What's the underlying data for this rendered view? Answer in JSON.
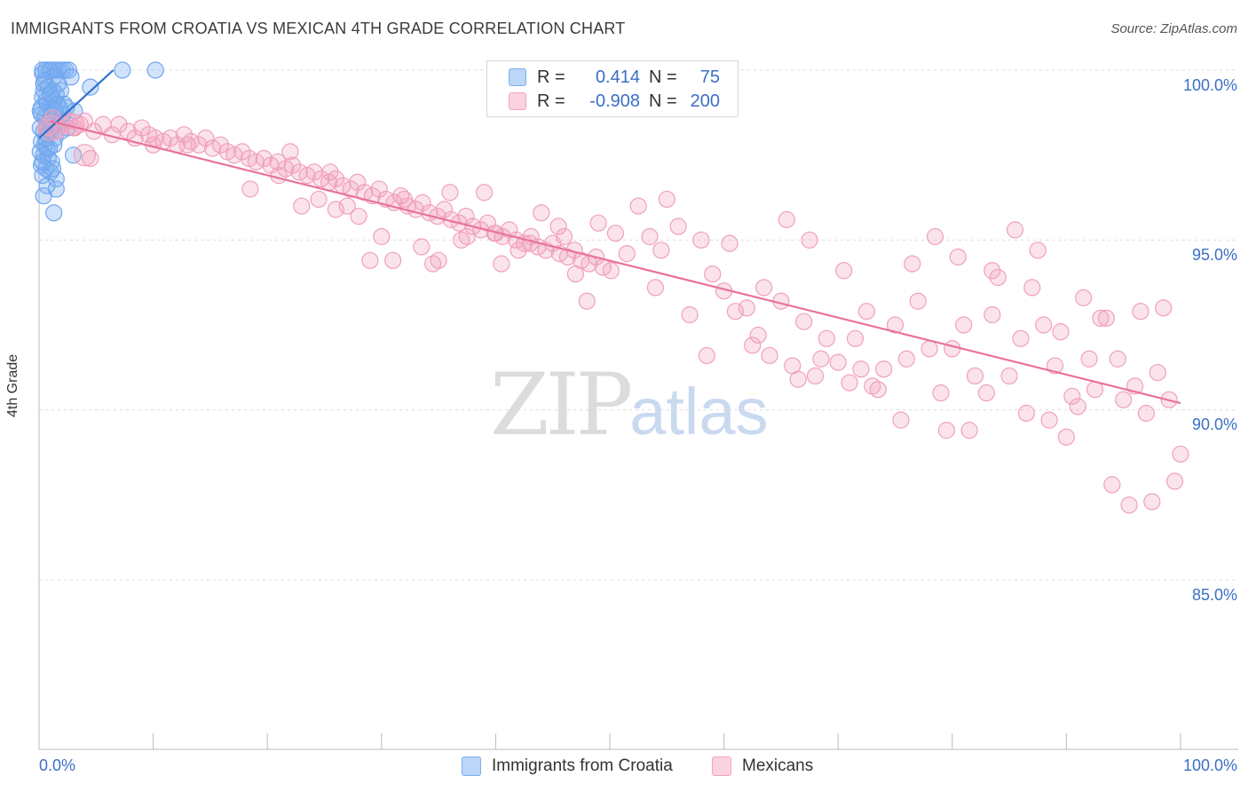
{
  "title": "IMMIGRANTS FROM CROATIA VS MEXICAN 4TH GRADE CORRELATION CHART",
  "source": "Source: ZipAtlas.com",
  "watermark": {
    "zip": "ZIP",
    "atlas": "atlas"
  },
  "legend_top": {
    "rows": [
      {
        "r_label": "R =",
        "r_value": "0.414",
        "n_label": "N =",
        "n_value": "75",
        "color": "#7aaef0"
      },
      {
        "r_label": "R =",
        "r_value": "-0.908",
        "n_label": "N =",
        "n_value": "200",
        "color": "#f3a3be"
      }
    ]
  },
  "legend_bottom": [
    {
      "label": "Immigrants from Croatia",
      "color": "#7aaef0"
    },
    {
      "label": "Mexicans",
      "color": "#f3a3be"
    }
  ],
  "chart_data": {
    "type": "scatter",
    "title": "IMMIGRANTS FROM CROATIA VS MEXICAN 4TH GRADE CORRELATION CHART",
    "xlabel": "",
    "ylabel": "4th Grade",
    "x_tick_labels": [
      "0.0%",
      "100.0%"
    ],
    "y_tick_labels": [
      "100.0%",
      "95.0%",
      "90.0%",
      "85.0%"
    ],
    "xlim": [
      0,
      100
    ],
    "ylim": [
      80.2,
      100.5
    ],
    "y_ticks": [
      100,
      95,
      90,
      85
    ],
    "grid": true,
    "legend": "top-center",
    "series": [
      {
        "name": "Immigrants from Croatia",
        "color": "#7aaef0",
        "line_color": "#2f6fd0",
        "trend": [
          [
            0.0,
            98.0
          ],
          [
            6.5,
            100.0
          ]
        ],
        "points": [
          [
            0.3,
            99.9
          ],
          [
            0.6,
            100.0
          ],
          [
            1.1,
            100.0
          ],
          [
            1.4,
            100.0
          ],
          [
            1.7,
            100.0
          ],
          [
            2.0,
            100.0
          ],
          [
            2.3,
            100.0
          ],
          [
            2.6,
            100.0
          ],
          [
            7.3,
            100.0
          ],
          [
            10.2,
            100.0
          ],
          [
            0.4,
            99.6
          ],
          [
            0.8,
            99.5
          ],
          [
            1.2,
            99.4
          ],
          [
            1.5,
            99.3
          ],
          [
            1.9,
            99.4
          ],
          [
            4.5,
            99.5
          ],
          [
            0.3,
            99.2
          ],
          [
            0.7,
            99.0
          ],
          [
            1.0,
            98.9
          ],
          [
            1.3,
            99.1
          ],
          [
            1.8,
            98.9
          ],
          [
            2.2,
            99.0
          ],
          [
            3.1,
            98.8
          ],
          [
            0.2,
            98.7
          ],
          [
            0.5,
            98.6
          ],
          [
            0.9,
            98.5
          ],
          [
            1.2,
            98.6
          ],
          [
            1.6,
            98.4
          ],
          [
            2.0,
            98.5
          ],
          [
            2.5,
            98.3
          ],
          [
            0.1,
            98.3
          ],
          [
            0.4,
            98.2
          ],
          [
            0.7,
            98.1
          ],
          [
            1.0,
            98.2
          ],
          [
            1.4,
            98.0
          ],
          [
            0.2,
            97.9
          ],
          [
            0.5,
            97.8
          ],
          [
            0.9,
            97.7
          ],
          [
            1.3,
            97.8
          ],
          [
            0.1,
            97.6
          ],
          [
            0.4,
            97.5
          ],
          [
            0.8,
            97.4
          ],
          [
            1.1,
            97.3
          ],
          [
            3.0,
            97.5
          ],
          [
            0.2,
            97.2
          ],
          [
            0.6,
            97.1
          ],
          [
            1.0,
            97.0
          ],
          [
            1.5,
            96.8
          ],
          [
            0.3,
            96.9
          ],
          [
            0.7,
            96.6
          ],
          [
            1.5,
            96.5
          ],
          [
            0.4,
            96.3
          ],
          [
            1.3,
            95.8
          ],
          [
            0.2,
            98.9
          ],
          [
            0.6,
            99.1
          ],
          [
            1.1,
            98.7
          ],
          [
            1.6,
            99.0
          ],
          [
            2.1,
            98.7
          ],
          [
            0.3,
            100.0
          ],
          [
            0.9,
            100.0
          ],
          [
            1.3,
            99.8
          ],
          [
            0.5,
            99.7
          ],
          [
            1.7,
            99.6
          ],
          [
            2.4,
            98.9
          ],
          [
            0.8,
            98.3
          ],
          [
            0.3,
            97.3
          ],
          [
            1.2,
            97.1
          ],
          [
            0.6,
            98.0
          ],
          [
            1.9,
            98.2
          ],
          [
            0.1,
            98.8
          ],
          [
            2.8,
            99.8
          ],
          [
            0.4,
            99.4
          ],
          [
            1.0,
            99.3
          ],
          [
            1.4,
            98.8
          ],
          [
            0.7,
            97.7
          ]
        ]
      },
      {
        "name": "Mexicans",
        "color": "#f3a3be",
        "line_color": "#e8739a",
        "trend": [
          [
            1.0,
            98.5
          ],
          [
            100.0,
            90.2
          ]
        ],
        "points": [
          [
            0.8,
            98.3
          ],
          [
            1.2,
            98.6
          ],
          [
            1.6,
            98.2
          ],
          [
            2.1,
            98.4
          ],
          [
            2.6,
            98.5
          ],
          [
            3.1,
            98.3
          ],
          [
            3.6,
            98.4
          ],
          [
            4.0,
            98.5
          ],
          [
            4.8,
            98.2
          ],
          [
            5.6,
            98.4
          ],
          [
            6.4,
            98.1
          ],
          [
            7.0,
            98.4
          ],
          [
            7.8,
            98.2
          ],
          [
            8.4,
            98.0
          ],
          [
            9.0,
            98.3
          ],
          [
            9.6,
            98.1
          ],
          [
            10.2,
            98.0
          ],
          [
            10.9,
            97.9
          ],
          [
            11.5,
            98.0
          ],
          [
            12.1,
            97.8
          ],
          [
            12.7,
            98.1
          ],
          [
            13.3,
            97.9
          ],
          [
            14.0,
            97.8
          ],
          [
            14.6,
            98.0
          ],
          [
            15.2,
            97.7
          ],
          [
            15.9,
            97.8
          ],
          [
            16.5,
            97.6
          ],
          [
            17.1,
            97.5
          ],
          [
            17.8,
            97.6
          ],
          [
            18.4,
            97.4
          ],
          [
            19.0,
            97.3
          ],
          [
            19.7,
            97.4
          ],
          [
            20.3,
            97.2
          ],
          [
            20.9,
            97.3
          ],
          [
            21.6,
            97.1
          ],
          [
            22.2,
            97.2
          ],
          [
            22.8,
            97.0
          ],
          [
            23.5,
            96.9
          ],
          [
            24.1,
            97.0
          ],
          [
            24.7,
            96.8
          ],
          [
            25.4,
            96.7
          ],
          [
            26.0,
            96.8
          ],
          [
            26.6,
            96.6
          ],
          [
            27.3,
            96.5
          ],
          [
            27.9,
            96.7
          ],
          [
            28.5,
            96.4
          ],
          [
            29.2,
            96.3
          ],
          [
            29.8,
            96.5
          ],
          [
            30.4,
            96.2
          ],
          [
            31.1,
            96.1
          ],
          [
            31.7,
            96.3
          ],
          [
            32.3,
            96.0
          ],
          [
            33.0,
            95.9
          ],
          [
            33.6,
            96.1
          ],
          [
            34.2,
            95.8
          ],
          [
            34.9,
            95.7
          ],
          [
            35.5,
            95.9
          ],
          [
            36.1,
            95.6
          ],
          [
            36.8,
            95.5
          ],
          [
            37.4,
            95.7
          ],
          [
            38.0,
            95.4
          ],
          [
            38.7,
            95.3
          ],
          [
            39.3,
            95.5
          ],
          [
            39.9,
            95.2
          ],
          [
            40.6,
            95.1
          ],
          [
            41.2,
            95.3
          ],
          [
            41.8,
            95.0
          ],
          [
            42.5,
            94.9
          ],
          [
            43.1,
            95.1
          ],
          [
            43.7,
            94.8
          ],
          [
            44.4,
            94.7
          ],
          [
            45.0,
            94.9
          ],
          [
            45.6,
            94.6
          ],
          [
            46.3,
            94.5
          ],
          [
            46.9,
            94.7
          ],
          [
            47.5,
            94.4
          ],
          [
            48.2,
            94.3
          ],
          [
            48.8,
            94.5
          ],
          [
            49.4,
            94.2
          ],
          [
            50.1,
            94.1
          ],
          [
            22.0,
            97.6
          ],
          [
            24.5,
            96.2
          ],
          [
            26.0,
            95.9
          ],
          [
            28.0,
            95.7
          ],
          [
            30.0,
            95.1
          ],
          [
            31.0,
            94.4
          ],
          [
            33.5,
            94.8
          ],
          [
            35.0,
            94.4
          ],
          [
            36.0,
            96.4
          ],
          [
            37.0,
            95.0
          ],
          [
            39.0,
            96.4
          ],
          [
            40.5,
            94.3
          ],
          [
            42.0,
            94.7
          ],
          [
            44.0,
            95.8
          ],
          [
            45.5,
            95.4
          ],
          [
            47.0,
            94.0
          ],
          [
            48.0,
            93.2
          ],
          [
            49.0,
            95.5
          ],
          [
            50.5,
            95.2
          ],
          [
            51.5,
            94.6
          ],
          [
            52.5,
            96.0
          ],
          [
            53.5,
            95.1
          ],
          [
            54.0,
            93.6
          ],
          [
            55.0,
            96.2
          ],
          [
            56.0,
            95.4
          ],
          [
            57.0,
            92.8
          ],
          [
            58.0,
            95.0
          ],
          [
            59.0,
            94.0
          ],
          [
            60.0,
            93.5
          ],
          [
            61.0,
            92.9
          ],
          [
            62.0,
            93.0
          ],
          [
            63.0,
            92.2
          ],
          [
            64.0,
            91.6
          ],
          [
            65.0,
            93.2
          ],
          [
            66.0,
            91.3
          ],
          [
            67.0,
            92.6
          ],
          [
            68.0,
            91.0
          ],
          [
            69.0,
            92.1
          ],
          [
            70.0,
            91.4
          ],
          [
            71.0,
            90.8
          ],
          [
            72.0,
            91.2
          ],
          [
            73.0,
            90.7
          ],
          [
            74.0,
            91.2
          ],
          [
            75.0,
            92.5
          ],
          [
            76.0,
            91.5
          ],
          [
            77.0,
            93.2
          ],
          [
            78.0,
            91.8
          ],
          [
            79.0,
            90.5
          ],
          [
            80.0,
            91.8
          ],
          [
            81.0,
            92.5
          ],
          [
            82.0,
            91.0
          ],
          [
            83.0,
            90.5
          ],
          [
            84.0,
            93.9
          ],
          [
            85.0,
            91.0
          ],
          [
            86.0,
            92.1
          ],
          [
            87.0,
            93.6
          ],
          [
            88.0,
            92.5
          ],
          [
            89.0,
            91.3
          ],
          [
            90.0,
            89.2
          ],
          [
            91.0,
            90.1
          ],
          [
            92.0,
            91.5
          ],
          [
            93.0,
            92.7
          ],
          [
            94.0,
            87.8
          ],
          [
            95.0,
            90.3
          ],
          [
            96.0,
            90.7
          ],
          [
            97.0,
            89.9
          ],
          [
            98.0,
            91.1
          ],
          [
            99.0,
            90.3
          ],
          [
            100.0,
            88.7
          ],
          [
            65.5,
            95.6
          ],
          [
            67.5,
            95.0
          ],
          [
            70.5,
            94.1
          ],
          [
            72.5,
            92.9
          ],
          [
            76.5,
            94.3
          ],
          [
            78.5,
            95.1
          ],
          [
            80.5,
            94.5
          ],
          [
            83.5,
            94.1
          ],
          [
            85.5,
            95.3
          ],
          [
            87.5,
            94.7
          ],
          [
            89.5,
            92.3
          ],
          [
            91.5,
            93.3
          ],
          [
            93.5,
            92.7
          ],
          [
            95.5,
            87.2
          ],
          [
            97.5,
            87.3
          ],
          [
            99.5,
            87.9
          ],
          [
            58.5,
            91.6
          ],
          [
            62.5,
            91.9
          ],
          [
            66.5,
            90.9
          ],
          [
            68.5,
            91.5
          ],
          [
            73.5,
            90.6
          ],
          [
            75.5,
            89.7
          ],
          [
            79.5,
            89.4
          ],
          [
            81.5,
            89.4
          ],
          [
            83.5,
            92.8
          ],
          [
            86.5,
            89.9
          ],
          [
            88.5,
            89.7
          ],
          [
            90.5,
            90.4
          ],
          [
            92.5,
            90.6
          ],
          [
            94.5,
            91.5
          ],
          [
            96.5,
            92.9
          ],
          [
            98.5,
            93.0
          ],
          [
            4.5,
            97.4
          ],
          [
            10.0,
            97.8
          ],
          [
            13.0,
            97.8
          ],
          [
            18.5,
            96.5
          ],
          [
            21.0,
            96.9
          ],
          [
            23.0,
            96.0
          ],
          [
            25.5,
            97.0
          ],
          [
            27.0,
            96.0
          ],
          [
            29.0,
            94.4
          ],
          [
            32.0,
            96.2
          ],
          [
            34.5,
            94.3
          ],
          [
            37.5,
            95.1
          ],
          [
            40.0,
            95.2
          ],
          [
            43.0,
            94.9
          ],
          [
            46.0,
            95.1
          ],
          [
            54.5,
            94.7
          ],
          [
            60.5,
            94.9
          ],
          [
            63.5,
            93.6
          ],
          [
            71.5,
            92.1
          ]
        ]
      }
    ]
  }
}
